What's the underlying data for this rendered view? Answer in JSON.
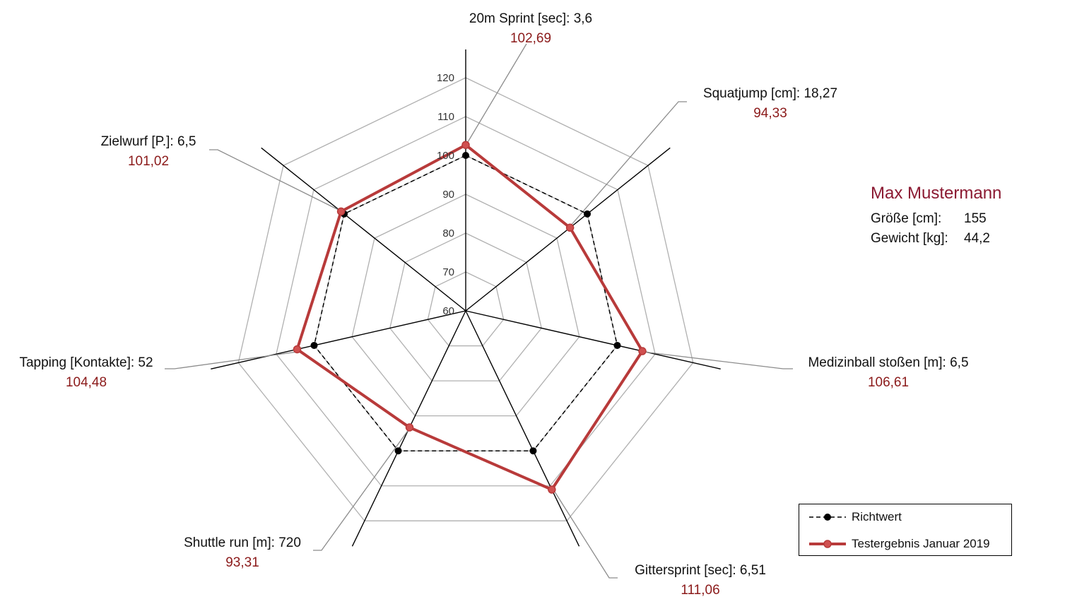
{
  "chart_data": {
    "type": "radar",
    "axes": [
      {
        "label": "20m Sprint [sec]: 3,6",
        "value_label": "102,69"
      },
      {
        "label": "Squatjump [cm]: 18,27",
        "value_label": "94,33"
      },
      {
        "label": "Medizinball stoßen [m]: 6,5",
        "value_label": "106,61"
      },
      {
        "label": "Gittersprint [sec]: 6,51",
        "value_label": "111,06"
      },
      {
        "label": "Shuttle run [m]: 720",
        "value_label": "93,31"
      },
      {
        "label": "Tapping [Kontakte]: 52",
        "value_label": "104,48"
      },
      {
        "label": "Zielwurf [P.]: 6,5",
        "value_label": "101,02"
      }
    ],
    "ticks": [
      "60",
      "70",
      "80",
      "90",
      "100",
      "120",
      "110"
    ],
    "tick_values": [
      60,
      70,
      80,
      90,
      100,
      120,
      110
    ],
    "rlim": [
      60,
      120
    ],
    "grid": true,
    "series": [
      {
        "name": "Richtwert",
        "values": [
          100,
          100,
          100,
          100,
          100,
          100,
          100
        ],
        "color": "#000000",
        "style": "dashed"
      },
      {
        "name": "Testergebnis Januar 2019",
        "values": [
          102.69,
          94.33,
          106.61,
          111.06,
          93.31,
          104.48,
          101.02
        ],
        "color": "#b83a3a",
        "style": "solid"
      }
    ],
    "legend_position": "bottom-right"
  },
  "athlete": {
    "name": "Max Mustermann",
    "height_label": "Größe [cm]:",
    "height_value": "155",
    "weight_label": "Gewicht [kg]:",
    "weight_value": "44,2"
  },
  "colors": {
    "grid": "#b0b0b0",
    "axis": "#000000",
    "leader": "#8c8c8c",
    "value_text": "#8b1a1a",
    "name_text": "#8b1a32"
  }
}
